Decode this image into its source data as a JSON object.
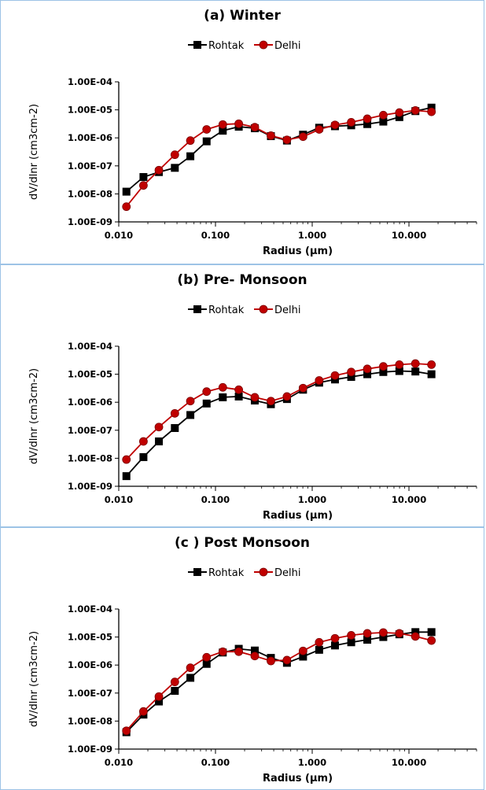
{
  "colors": {
    "rohtak": "#000000",
    "delhi": "#c00000",
    "border": "#9dc3e6"
  },
  "chart_data": [
    {
      "type": "line",
      "title": "(a) Winter",
      "xlabel": "Radius (µm)",
      "ylabel": "dV/dlnr (cm3cm-2)",
      "x_scale": "log",
      "y_scale": "log",
      "xlim": [
        0.01,
        50
      ],
      "ylim": [
        1e-09,
        0.0001
      ],
      "x_ticks": [
        "0.010",
        "0.100",
        "1.000",
        "10.000"
      ],
      "y_ticks": [
        "1.00E-09",
        "1.00E-08",
        "1.00E-07",
        "1.00E-06",
        "1.00E-05",
        "1.00E-04"
      ],
      "legend_position": "top-center",
      "x": [
        0.012,
        0.018,
        0.026,
        0.038,
        0.055,
        0.081,
        0.119,
        0.174,
        0.255,
        0.374,
        0.548,
        0.804,
        1.18,
        1.72,
        2.53,
        3.71,
        5.43,
        7.96,
        11.66,
        17.09
      ],
      "series": [
        {
          "name": "Rohtak",
          "marker": "square",
          "color": "#000000",
          "values": [
            1.2e-08,
            4e-08,
            6e-08,
            8.5e-08,
            2.2e-07,
            7.5e-07,
            1.8e-06,
            2.5e-06,
            2.2e-06,
            1.15e-06,
            8e-07,
            1.3e-06,
            2.3e-06,
            2.6e-06,
            2.8e-06,
            3.1e-06,
            3.8e-06,
            5.5e-06,
            9e-06,
            1.2e-05
          ]
        },
        {
          "name": "Delhi",
          "marker": "circle",
          "color": "#c00000",
          "values": [
            3.5e-09,
            2e-08,
            7e-08,
            2.5e-07,
            8e-07,
            2e-06,
            3e-06,
            3.2e-06,
            2.4e-06,
            1.2e-06,
            8.5e-07,
            1.1e-06,
            2e-06,
            2.9e-06,
            3.6e-06,
            4.8e-06,
            6.5e-06,
            8e-06,
            9.5e-06,
            8.5e-06
          ]
        }
      ]
    },
    {
      "type": "line",
      "title": "(b) Pre- Monsoon",
      "xlabel": "Radius (µm)",
      "ylabel": "dV/dlnr (cm3cm-2)",
      "x_scale": "log",
      "y_scale": "log",
      "xlim": [
        0.01,
        50
      ],
      "ylim": [
        1e-09,
        0.0001
      ],
      "x_ticks": [
        "0.010",
        "0.100",
        "1.000",
        "10.000"
      ],
      "y_ticks": [
        "1.00E-09",
        "1.00E-08",
        "1.00E-07",
        "1.00E-06",
        "1.00E-05",
        "1.00E-04"
      ],
      "legend_position": "top-center",
      "x": [
        0.012,
        0.018,
        0.026,
        0.038,
        0.055,
        0.081,
        0.119,
        0.174,
        0.255,
        0.374,
        0.548,
        0.804,
        1.18,
        1.72,
        2.53,
        3.71,
        5.43,
        7.96,
        11.66,
        17.09
      ],
      "series": [
        {
          "name": "Rohtak",
          "marker": "square",
          "color": "#000000",
          "values": [
            2.3e-09,
            1.1e-08,
            4e-08,
            1.2e-07,
            3.5e-07,
            9e-07,
            1.5e-06,
            1.6e-06,
            1.15e-06,
            8.5e-07,
            1.3e-06,
            2.8e-06,
            5e-06,
            6.5e-06,
            8e-06,
            1e-05,
            1.2e-05,
            1.3e-05,
            1.25e-05,
            1e-05
          ]
        },
        {
          "name": "Delhi",
          "marker": "circle",
          "color": "#c00000",
          "values": [
            9e-09,
            4e-08,
            1.3e-07,
            4e-07,
            1.1e-06,
            2.4e-06,
            3.4e-06,
            2.8e-06,
            1.5e-06,
            1.1e-06,
            1.6e-06,
            3.2e-06,
            6e-06,
            9e-06,
            1.2e-05,
            1.55e-05,
            1.9e-05,
            2.2e-05,
            2.4e-05,
            2.2e-05
          ]
        }
      ]
    },
    {
      "type": "line",
      "title": "(c ) Post Monsoon",
      "xlabel": "Radius (µm)",
      "ylabel": "dV/dlnr (cm3cm-2)",
      "x_scale": "log",
      "y_scale": "log",
      "xlim": [
        0.01,
        50
      ],
      "ylim": [
        1e-09,
        0.0001
      ],
      "x_ticks": [
        "0.010",
        "0.100",
        "1.000",
        "10.000"
      ],
      "y_ticks": [
        "1.00E-09",
        "1.00E-08",
        "1.00E-07",
        "1.00E-06",
        "1.00E-05",
        "1.00E-04"
      ],
      "legend_position": "top-center",
      "x": [
        0.012,
        0.018,
        0.026,
        0.038,
        0.055,
        0.081,
        0.119,
        0.174,
        0.255,
        0.374,
        0.548,
        0.804,
        1.18,
        1.72,
        2.53,
        3.71,
        5.43,
        7.96,
        11.66,
        17.09
      ],
      "series": [
        {
          "name": "Rohtak",
          "marker": "square",
          "color": "#000000",
          "values": [
            4e-09,
            1.7e-08,
            5e-08,
            1.2e-07,
            3.5e-07,
            1.1e-06,
            2.8e-06,
            3.8e-06,
            3.3e-06,
            1.8e-06,
            1.2e-06,
            2e-06,
            3.5e-06,
            5e-06,
            6.5e-06,
            8e-06,
            1e-05,
            1.25e-05,
            1.5e-05,
            1.5e-05
          ]
        },
        {
          "name": "Delhi",
          "marker": "circle",
          "color": "#c00000",
          "values": [
            4.5e-09,
            2.2e-08,
            7.5e-08,
            2.5e-07,
            8e-07,
            1.9e-06,
            3e-06,
            3e-06,
            2.1e-06,
            1.4e-06,
            1.5e-06,
            3.2e-06,
            6.5e-06,
            9e-06,
            1.15e-05,
            1.35e-05,
            1.45e-05,
            1.35e-05,
            1.05e-05,
            7.5e-06
          ]
        }
      ]
    }
  ]
}
